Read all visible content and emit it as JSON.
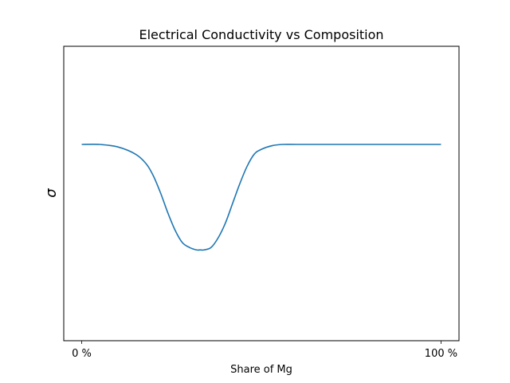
{
  "chart_data": {
    "type": "line",
    "title": "Electrical Conductivity vs Composition",
    "xlabel": "Share of Mg",
    "ylabel": "σ",
    "xlim": [
      -0.05,
      1.05
    ],
    "ylim": [
      0,
      1.2
    ],
    "x_ticks": [
      {
        "value": 0,
        "label": "0 %"
      },
      {
        "value": 1,
        "label": "100 %"
      }
    ],
    "y_ticks": [],
    "grid": false,
    "series": [
      {
        "color": "#1f77b4",
        "x": [
          0.0,
          0.05,
          0.1,
          0.15,
          0.18,
          0.2,
          0.22,
          0.24,
          0.26,
          0.28,
          0.3,
          0.32,
          0.33,
          0.34,
          0.36,
          0.38,
          0.4,
          0.42,
          0.44,
          0.46,
          0.48,
          0.5,
          0.53,
          0.56,
          0.6,
          0.7,
          0.8,
          0.9,
          1.0
        ],
        "y": [
          0.8,
          0.8,
          0.79,
          0.76,
          0.72,
          0.67,
          0.6,
          0.52,
          0.45,
          0.4,
          0.38,
          0.37,
          0.37,
          0.37,
          0.38,
          0.42,
          0.48,
          0.56,
          0.64,
          0.71,
          0.76,
          0.78,
          0.795,
          0.8,
          0.8,
          0.8,
          0.8,
          0.8,
          0.8
        ]
      }
    ]
  }
}
